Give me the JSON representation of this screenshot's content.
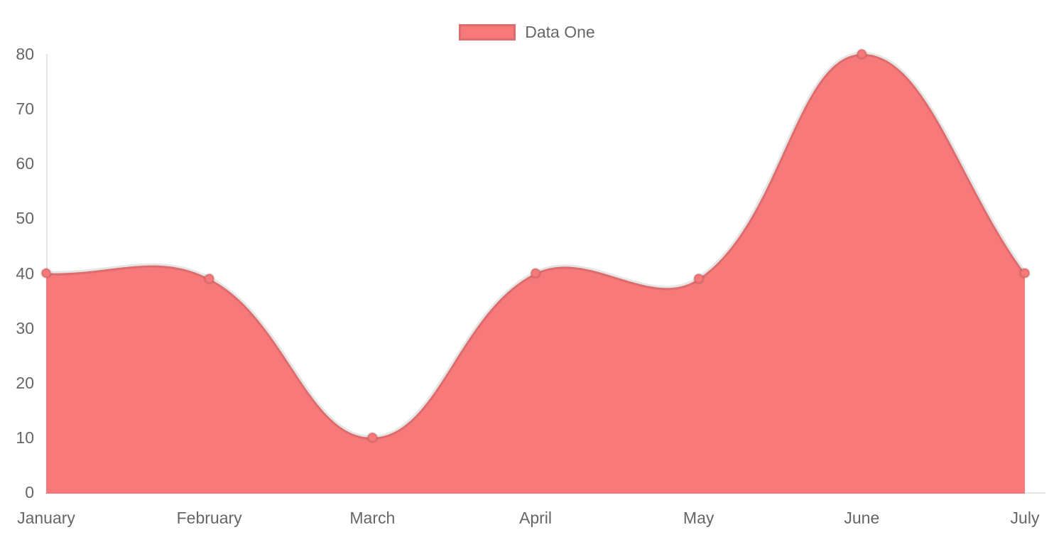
{
  "legend": {
    "items": [
      {
        "label": "Data One",
        "swatch_color": "#f87979"
      }
    ]
  },
  "chart_data": {
    "type": "area",
    "title": "",
    "xlabel": "",
    "ylabel": "",
    "categories": [
      "January",
      "February",
      "March",
      "April",
      "May",
      "June",
      "July"
    ],
    "series": [
      {
        "name": "Data One",
        "values": [
          40,
          39,
          10,
          40,
          39,
          80,
          40
        ],
        "fill_color": "#f87979",
        "line_color": "rgba(0,0,0,0.10)"
      }
    ],
    "ylim": [
      0,
      80
    ],
    "y_ticks": [
      0,
      10,
      20,
      30,
      40,
      50,
      60,
      70,
      80
    ],
    "grid": false,
    "legend_position": "top-center",
    "line_tension": 0.4
  },
  "colors": {
    "fill": "#f87979",
    "axis_line": "rgba(0,0,0,0.10)",
    "legend_swatch_border": "rgba(0,0,0,0.10)",
    "tick_text": "#666666",
    "background": "#ffffff"
  }
}
